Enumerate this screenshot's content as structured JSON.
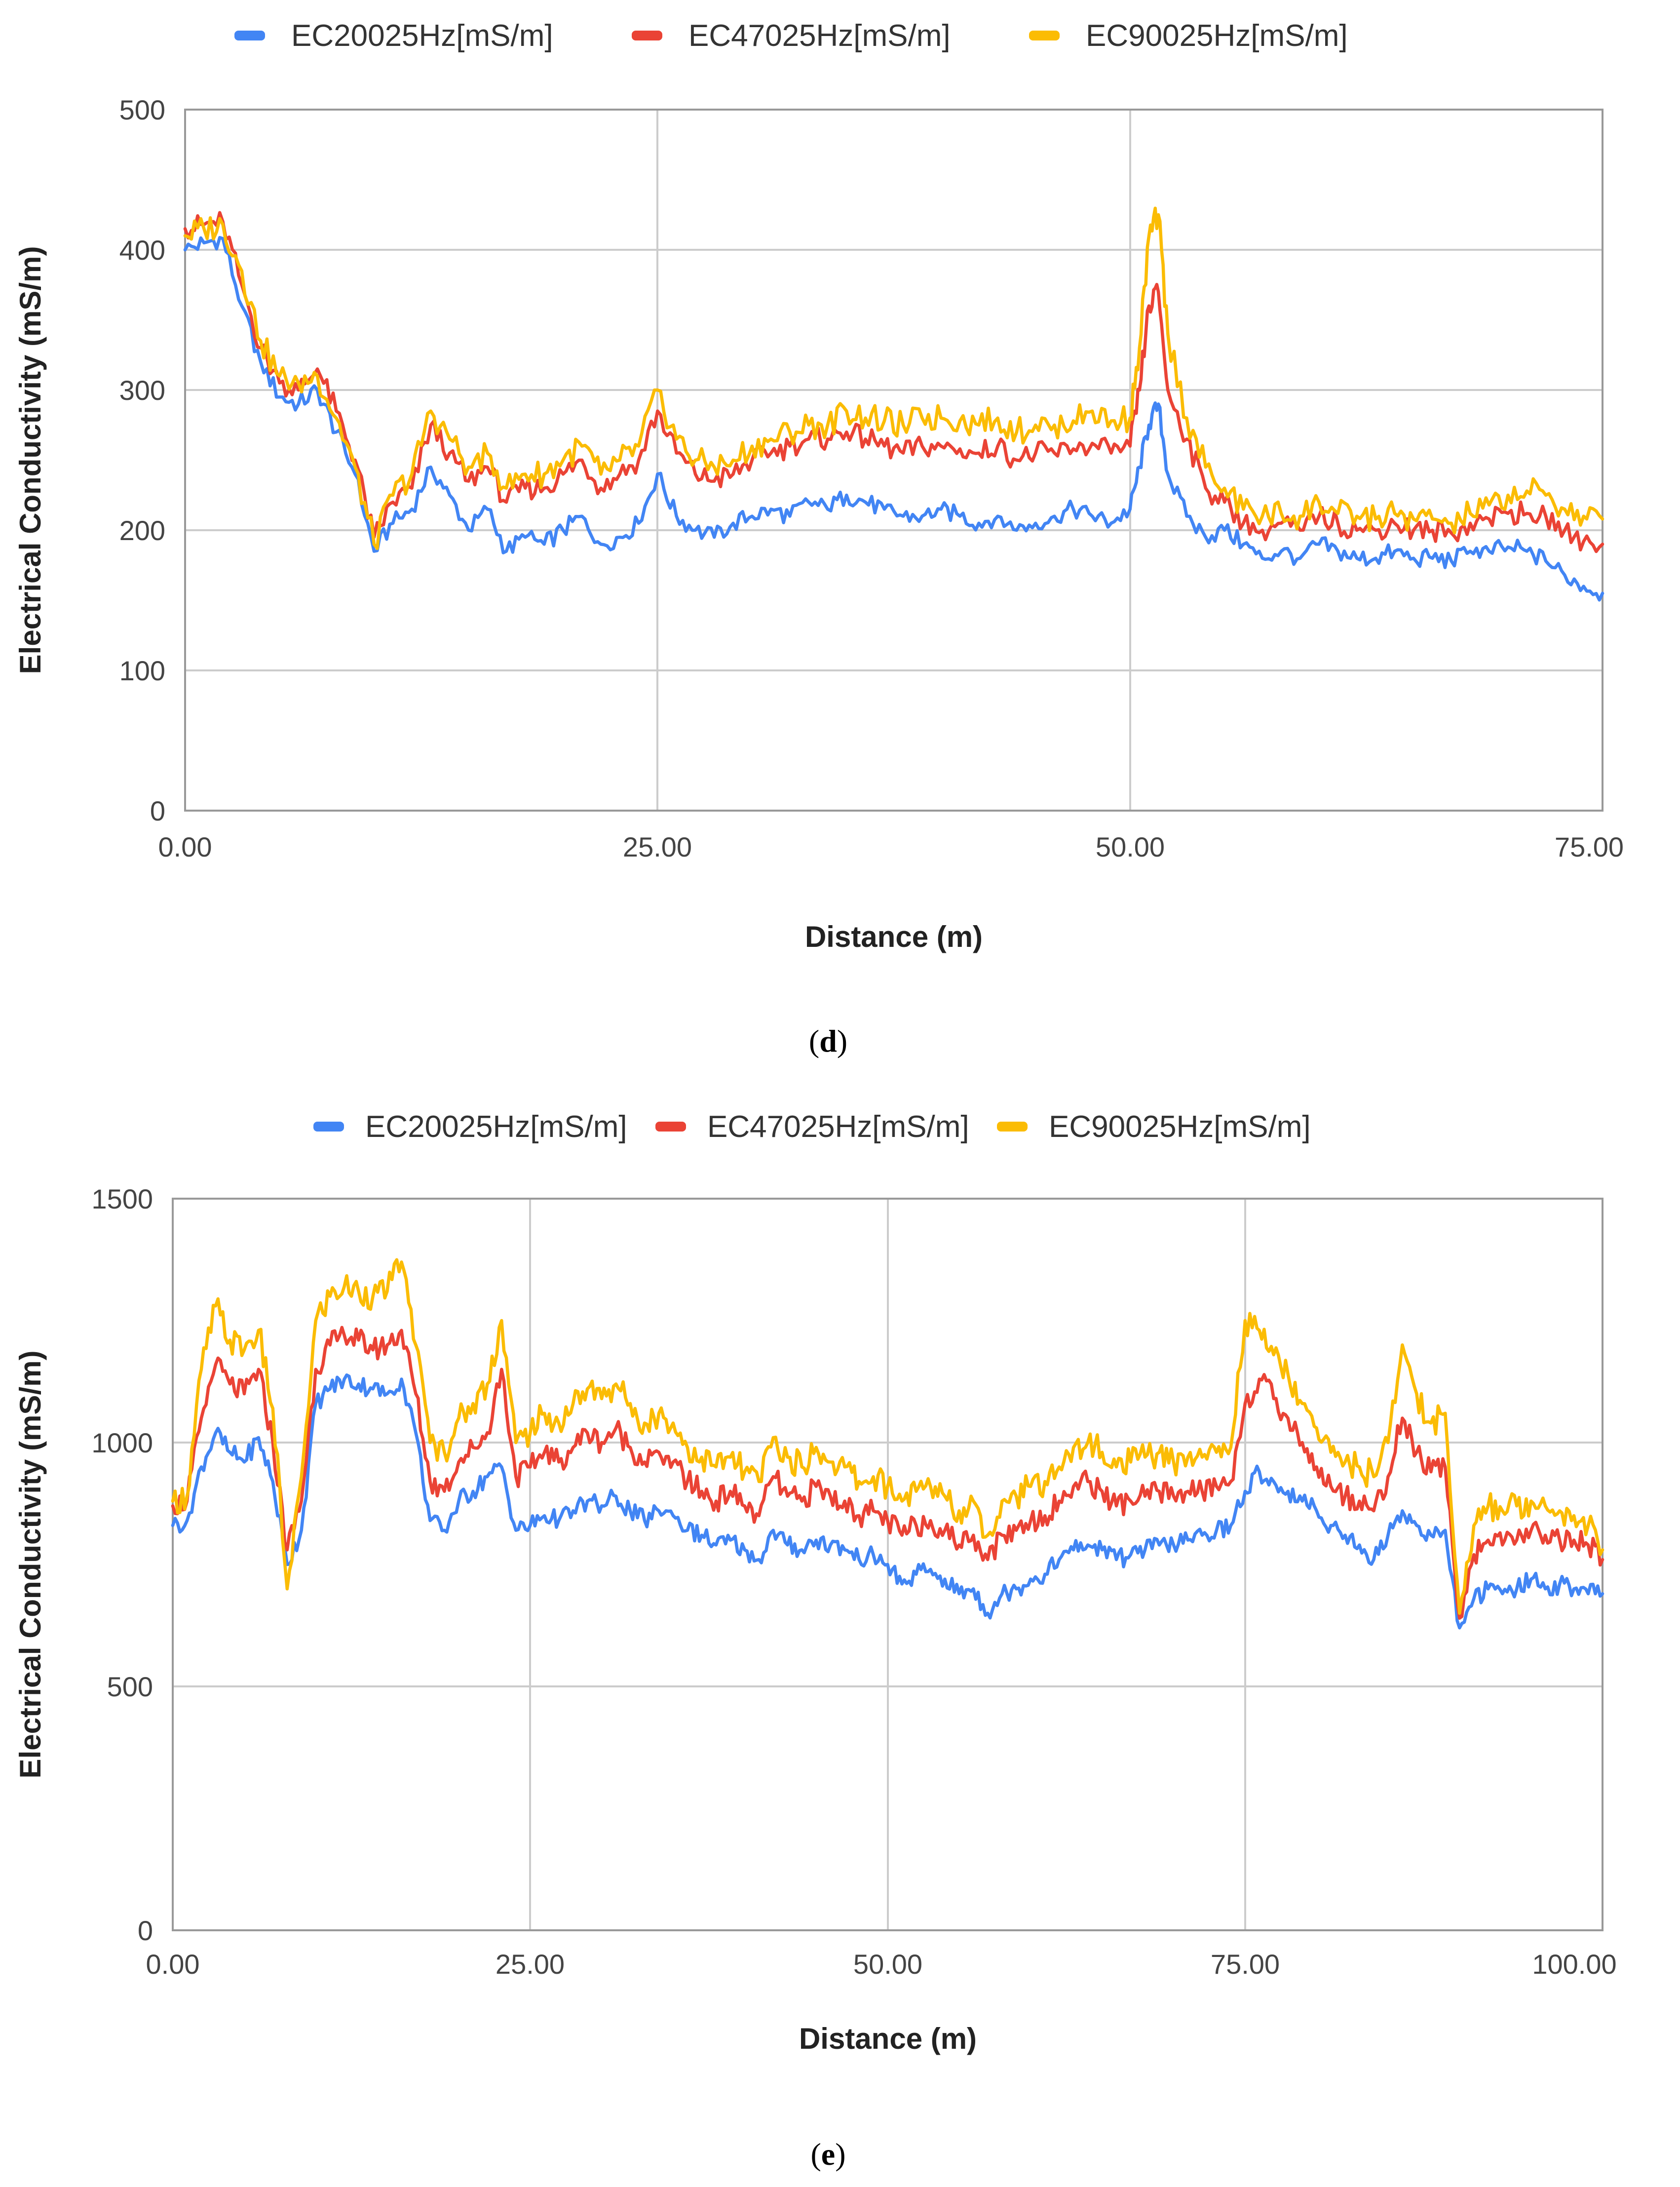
{
  "colors": {
    "s1": "#4285F4",
    "s2": "#EA4335",
    "s3": "#FBBC04"
  },
  "legend_labels": [
    "EC20025Hz[mS/m]",
    "EC47025Hz[mS/m]",
    "EC90025Hz[mS/m]"
  ],
  "captions": {
    "d": "d",
    "e": "e"
  },
  "chart_data": [
    {
      "type": "line",
      "panel": "d",
      "xlabel": "Distance (m)",
      "ylabel": "Electrical Conductivity (mS/m)",
      "xlim": [
        0,
        75
      ],
      "ylim": [
        0,
        500
      ],
      "x_ticks": [
        "0.00",
        "25.00",
        "50.00",
        "75.00"
      ],
      "x_tick_values": [
        0,
        25,
        50,
        75
      ],
      "y_ticks": [
        "0",
        "100",
        "200",
        "300",
        "400",
        "500"
      ],
      "y_tick_values": [
        0,
        100,
        200,
        300,
        400,
        500
      ],
      "grid": true,
      "legend_position": "top",
      "x": [
        0,
        1,
        2,
        3,
        4,
        5,
        6,
        7,
        8,
        9,
        10,
        11,
        12,
        13,
        14,
        15,
        16,
        17,
        18,
        19,
        20,
        21,
        22,
        23,
        24,
        25,
        26,
        27,
        28,
        29,
        30,
        31,
        32,
        33,
        34,
        35,
        36,
        37,
        38,
        39,
        40,
        41,
        42,
        43,
        44,
        45,
        46,
        47,
        48,
        49,
        50,
        50.5,
        51,
        51.5,
        52,
        53,
        54,
        55,
        56,
        57,
        58,
        59,
        60,
        61,
        62,
        63,
        64,
        65,
        66,
        67,
        68,
        69,
        70,
        71,
        72,
        73,
        74,
        75
      ],
      "series": [
        {
          "name": "EC20025Hz[mS/m]",
          "values": [
            400,
            405,
            408,
            360,
            320,
            295,
            290,
            300,
            270,
            240,
            185,
            205,
            215,
            245,
            225,
            200,
            215,
            185,
            195,
            190,
            200,
            210,
            190,
            195,
            205,
            240,
            210,
            200,
            195,
            205,
            210,
            215,
            210,
            220,
            215,
            225,
            220,
            215,
            210,
            210,
            215,
            210,
            205,
            210,
            200,
            205,
            210,
            215,
            210,
            205,
            215,
            245,
            275,
            290,
            240,
            210,
            195,
            200,
            190,
            180,
            185,
            180,
            190,
            185,
            180,
            180,
            185,
            180,
            180,
            178,
            185,
            185,
            188,
            185,
            178,
            168,
            160,
            155
          ]
        },
        {
          "name": "EC47025Hz[mS/m]",
          "values": [
            415,
            418,
            420,
            375,
            330,
            305,
            300,
            315,
            285,
            250,
            195,
            220,
            230,
            275,
            255,
            235,
            245,
            220,
            230,
            230,
            240,
            250,
            230,
            240,
            250,
            285,
            255,
            240,
            235,
            240,
            250,
            255,
            260,
            265,
            265,
            270,
            265,
            260,
            255,
            260,
            260,
            258,
            255,
            260,
            250,
            255,
            255,
            258,
            262,
            255,
            260,
            300,
            360,
            370,
            300,
            265,
            230,
            220,
            205,
            200,
            205,
            200,
            210,
            205,
            200,
            200,
            205,
            200,
            200,
            198,
            205,
            208,
            212,
            212,
            210,
            200,
            192,
            190
          ]
        },
        {
          "name": "EC90025Hz[mS/m]",
          "values": [
            410,
            415,
            418,
            385,
            335,
            310,
            305,
            310,
            280,
            245,
            190,
            225,
            240,
            285,
            265,
            245,
            255,
            230,
            240,
            240,
            250,
            260,
            240,
            250,
            260,
            300,
            265,
            250,
            245,
            250,
            260,
            265,
            270,
            275,
            275,
            285,
            280,
            278,
            275,
            280,
            280,
            278,
            275,
            280,
            270,
            275,
            275,
            278,
            285,
            278,
            280,
            330,
            410,
            425,
            340,
            280,
            245,
            230,
            215,
            210,
            212,
            210,
            220,
            212,
            210,
            208,
            212,
            208,
            208,
            205,
            212,
            218,
            225,
            228,
            225,
            215,
            210,
            208
          ]
        }
      ]
    },
    {
      "type": "line",
      "panel": "e",
      "xlabel": "Distance (m)",
      "ylabel": "Electrical Conductivity (mS/m)",
      "xlim": [
        0,
        100
      ],
      "ylim": [
        0,
        1500
      ],
      "x_ticks": [
        "0.00",
        "25.00",
        "50.00",
        "75.00",
        "100.00"
      ],
      "x_tick_values": [
        0,
        25,
        50,
        75,
        100
      ],
      "y_ticks": [
        "0",
        "500",
        "1000",
        "1500"
      ],
      "y_tick_values": [
        0,
        500,
        1000,
        1500
      ],
      "grid": true,
      "legend_position": "top",
      "x": [
        0,
        1,
        2,
        3,
        4,
        5,
        6,
        7,
        8,
        9,
        10,
        11,
        12,
        13,
        14,
        15,
        16,
        17,
        18,
        19,
        20,
        21,
        22,
        23,
        24,
        25,
        26,
        27,
        28,
        29,
        30,
        31,
        32,
        33,
        34,
        35,
        36,
        37,
        38,
        39,
        40,
        41,
        42,
        43,
        44,
        45,
        46,
        47,
        48,
        49,
        50,
        51,
        52,
        53,
        54,
        55,
        56,
        57,
        58,
        59,
        60,
        61,
        62,
        63,
        64,
        65,
        66,
        67,
        68,
        69,
        70,
        71,
        72,
        73,
        74,
        75,
        76,
        77,
        78,
        79,
        80,
        81,
        82,
        83,
        84,
        85,
        86,
        87,
        88,
        89,
        90,
        91,
        92,
        93,
        94,
        95,
        96,
        97,
        98,
        99,
        100
      ],
      "series": [
        {
          "name": "EC20025Hz[mS/m]",
          "values": [
            830,
            840,
            950,
            1020,
            980,
            960,
            1010,
            920,
            750,
            820,
            1080,
            1110,
            1130,
            1120,
            1110,
            1100,
            1130,
            1020,
            840,
            820,
            880,
            900,
            930,
            950,
            820,
            830,
            850,
            840,
            860,
            880,
            870,
            890,
            860,
            840,
            860,
            850,
            820,
            810,
            790,
            800,
            780,
            760,
            820,
            790,
            780,
            800,
            790,
            780,
            760,
            770,
            750,
            710,
            730,
            740,
            720,
            690,
            700,
            650,
            690,
            700,
            720,
            730,
            760,
            780,
            790,
            780,
            760,
            770,
            780,
            790,
            790,
            800,
            810,
            820,
            830,
            900,
            940,
            920,
            900,
            880,
            860,
            830,
            810,
            790,
            760,
            810,
            860,
            830,
            810,
            820,
            620,
            680,
            700,
            690,
            700,
            720,
            700,
            710,
            700,
            690,
            690
          ]
        },
        {
          "name": "EC47025Hz[mS/m]",
          "values": [
            870,
            880,
            1050,
            1160,
            1120,
            1100,
            1150,
            1000,
            780,
            880,
            1150,
            1200,
            1220,
            1210,
            1190,
            1200,
            1230,
            1100,
            920,
            900,
            960,
            990,
            1020,
            1150,
            930,
            950,
            980,
            960,
            990,
            1020,
            1000,
            1030,
            990,
            960,
            980,
            960,
            920,
            900,
            880,
            900,
            870,
            850,
            930,
            890,
            880,
            910,
            890,
            880,
            850,
            860,
            840,
            810,
            830,
            840,
            820,
            790,
            810,
            760,
            810,
            820,
            840,
            850,
            880,
            910,
            920,
            900,
            870,
            880,
            890,
            900,
            890,
            900,
            900,
            910,
            920,
            1080,
            1130,
            1090,
            1050,
            1000,
            950,
            910,
            890,
            880,
            860,
            930,
            1050,
            980,
            940,
            950,
            640,
            770,
            800,
            790,
            800,
            820,
            810,
            800,
            800,
            790,
            760
          ]
        },
        {
          "name": "EC90025Hz[mS/m]",
          "values": [
            880,
            890,
            1150,
            1280,
            1210,
            1190,
            1230,
            1070,
            700,
            930,
            1250,
            1300,
            1320,
            1310,
            1300,
            1310,
            1370,
            1200,
            1000,
            980,
            1050,
            1080,
            1120,
            1250,
            1000,
            1020,
            1060,
            1040,
            1080,
            1110,
            1090,
            1120,
            1080,
            1040,
            1060,
            1040,
            990,
            970,
            950,
            970,
            940,
            920,
            1010,
            970,
            950,
            990,
            960,
            950,
            920,
            930,
            910,
            880,
            900,
            910,
            890,
            860,
            880,
            810,
            880,
            890,
            910,
            920,
            950,
            990,
            1000,
            980,
            950,
            960,
            970,
            980,
            960,
            970,
            970,
            980,
            990,
            1250,
            1230,
            1180,
            1140,
            1080,
            1030,
            980,
            960,
            950,
            930,
            1000,
            1200,
            1100,
            1040,
            1060,
            650,
            830,
            870,
            860,
            870,
            880,
            870,
            860,
            850,
            830,
            780
          ]
        }
      ]
    }
  ]
}
